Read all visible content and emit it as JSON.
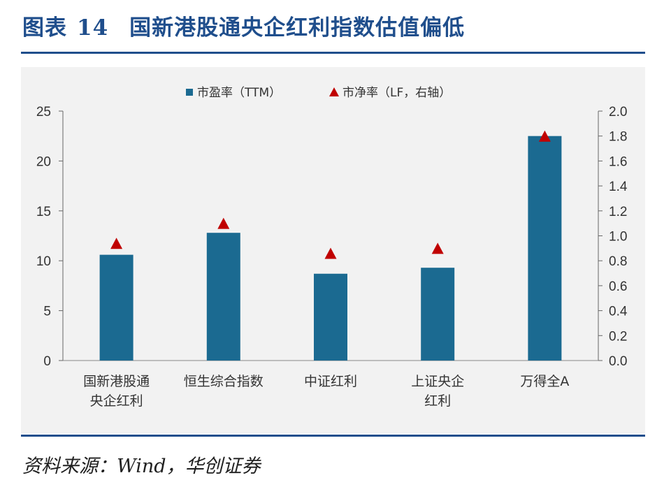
{
  "header": {
    "figure_label": "图表",
    "figure_number": "14",
    "title": "国新港股通央企红利指数估值偏低"
  },
  "footer": {
    "source": "资料来源：Wind，华创证券"
  },
  "colors": {
    "bar": "#1b6a91",
    "marker": "#c00000",
    "accent": "#1f4e8c"
  },
  "chart_data": {
    "type": "bar",
    "categories": [
      [
        "国新港股通",
        "央企红利"
      ],
      [
        "恒生综合指数"
      ],
      [
        "中证红利"
      ],
      [
        "上证央企",
        "红利"
      ],
      [
        "万得全A"
      ]
    ],
    "series": [
      {
        "name": "市盈率（TTM）",
        "type": "bar",
        "axis": "left",
        "values": [
          10.6,
          12.8,
          8.7,
          9.3,
          22.5
        ]
      },
      {
        "name": "市净率（LF，右轴）",
        "type": "scatter",
        "marker": "triangle",
        "axis": "right",
        "values": [
          0.94,
          1.1,
          0.86,
          0.9,
          1.8
        ]
      }
    ],
    "y_left": {
      "min": 0,
      "max": 25,
      "ticks": [
        "0",
        "5",
        "10",
        "15",
        "20",
        "25"
      ]
    },
    "y_right": {
      "min": 0,
      "max": 2.0,
      "ticks": [
        "0.0",
        "0.2",
        "0.4",
        "0.6",
        "0.8",
        "1.0",
        "1.2",
        "1.4",
        "1.6",
        "1.8",
        "2.0"
      ]
    },
    "legend": [
      "市盈率（TTM）",
      "市净率（LF，右轴）"
    ],
    "legend_position": "top-center"
  }
}
